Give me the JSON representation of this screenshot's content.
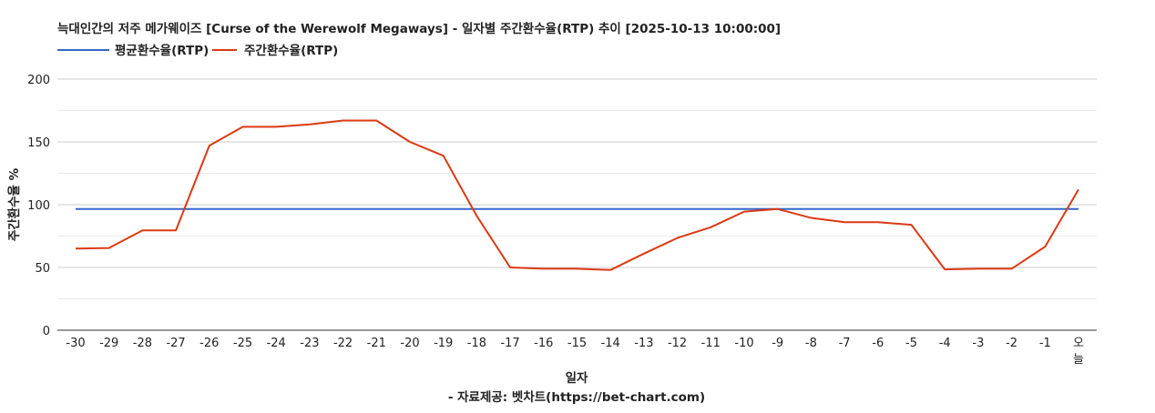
{
  "chart_data": {
    "type": "line",
    "title": "늑대인간의 저주 메가웨이즈 [Curse of the Werewolf Megaways] - 일자별 주간환수율(RTP) 추이 [2025-10-13 10:00:00]",
    "xlabel": "일자",
    "ylabel": "주간환수율 %",
    "source": "- 자료제공: 벳차트(https://bet-chart.com)",
    "ylim": [
      0,
      200
    ],
    "yticks": [
      "0",
      "50",
      "100",
      "150",
      "200"
    ],
    "grid": true,
    "legend_position": "top-left",
    "categories": [
      "-30",
      "-29",
      "-28",
      "-27",
      "-26",
      "-25",
      "-24",
      "-23",
      "-22",
      "-21",
      "-20",
      "-19",
      "-18",
      "-17",
      "-16",
      "-15",
      "-14",
      "-13",
      "-12",
      "-11",
      "-10",
      "-9",
      "-8",
      "-7",
      "-6",
      "-5",
      "-4",
      "-3",
      "-2",
      "-1",
      "오늘"
    ],
    "series": [
      {
        "name": "평균환수율(RTP)",
        "color": "#3366cc",
        "values": [
          96.5,
          96.5,
          96.5,
          96.5,
          96.5,
          96.5,
          96.5,
          96.5,
          96.5,
          96.5,
          96.5,
          96.5,
          96.5,
          96.5,
          96.5,
          96.5,
          96.5,
          96.5,
          96.5,
          96.5,
          96.5,
          96.5,
          96.5,
          96.5,
          96.5,
          96.5,
          96.5,
          96.5,
          96.5,
          96.5,
          96.5
        ]
      },
      {
        "name": "주간환수율(RTP)",
        "color": "#dc3912",
        "values": [
          65,
          65.5,
          79.5,
          79.5,
          147,
          162,
          162,
          164,
          167,
          167,
          150,
          139,
          91,
          50,
          49,
          49,
          48,
          61,
          73.5,
          82,
          94.5,
          96.5,
          89.5,
          86,
          86,
          84,
          48.5,
          49,
          49,
          66.5,
          112
        ]
      }
    ]
  }
}
